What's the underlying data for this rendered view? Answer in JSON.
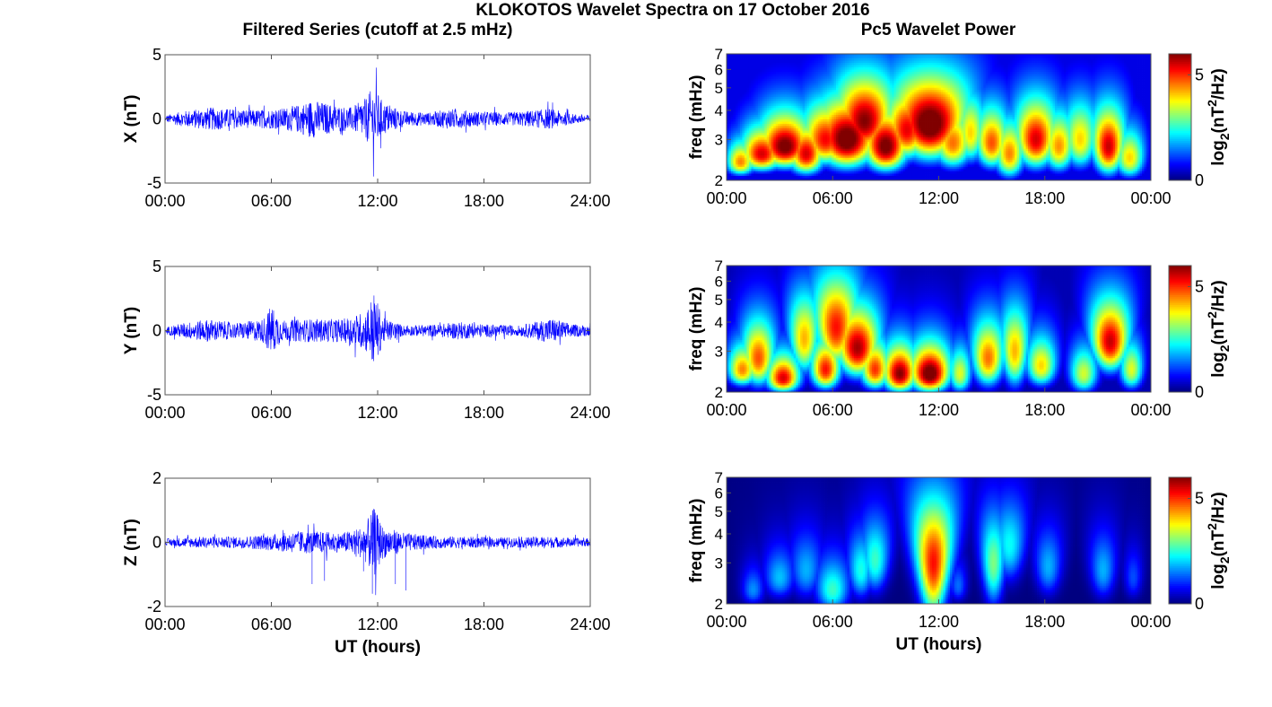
{
  "figure": {
    "title": "KLOKOTOS Wavelet Spectra on 17 October 2016",
    "left_title": "Filtered Series (cutoff at 2.5 mHz)",
    "right_title": "Pc5 Wavelet Power",
    "x_label": "UT (hours)"
  },
  "chart_data": [
    {
      "type": "line",
      "component": "X",
      "ylabel": "X (nT)",
      "ylim": [
        -5,
        5
      ],
      "yticks": [
        "-5",
        "0",
        "5"
      ],
      "xlim": [
        0,
        24
      ],
      "xticks": [
        "00:00",
        "06:00",
        "12:00",
        "18:00",
        "24:00"
      ],
      "series": [
        {
          "color": "#0000ff",
          "envelope": [
            {
              "x": 0.0,
              "amp": 0.0
            },
            {
              "x": 0.1,
              "amp": 0.3
            },
            {
              "x": 1.0,
              "amp": 0.6
            },
            {
              "x": 2.5,
              "amp": 0.9
            },
            {
              "x": 3.5,
              "amp": 0.8
            },
            {
              "x": 5.0,
              "amp": 0.7
            },
            {
              "x": 6.5,
              "amp": 0.8
            },
            {
              "x": 7.5,
              "amp": 1.1
            },
            {
              "x": 8.3,
              "amp": 1.5
            },
            {
              "x": 9.5,
              "amp": 1.1
            },
            {
              "x": 10.5,
              "amp": 0.9
            },
            {
              "x": 11.3,
              "amp": 1.6
            },
            {
              "x": 11.8,
              "amp": 2.6
            },
            {
              "x": 12.3,
              "amp": 1.3
            },
            {
              "x": 13.5,
              "amp": 0.6
            },
            {
              "x": 15.0,
              "amp": 0.5
            },
            {
              "x": 16.0,
              "amp": 0.8
            },
            {
              "x": 17.5,
              "amp": 0.6
            },
            {
              "x": 19.5,
              "amp": 0.5
            },
            {
              "x": 21.7,
              "amp": 0.8
            },
            {
              "x": 23.0,
              "amp": 0.4
            },
            {
              "x": 24.0,
              "amp": 0.3
            }
          ]
        }
      ]
    },
    {
      "type": "line",
      "component": "Y",
      "ylabel": "Y (nT)",
      "ylim": [
        -5,
        5
      ],
      "yticks": [
        "-5",
        "0",
        "5"
      ],
      "xlim": [
        0,
        24
      ],
      "xticks": [
        "00:00",
        "06:00",
        "12:00",
        "18:00",
        "24:00"
      ],
      "series": [
        {
          "color": "#0000ff",
          "envelope": [
            {
              "x": 0.0,
              "amp": 0.0
            },
            {
              "x": 0.1,
              "amp": 0.3
            },
            {
              "x": 1.0,
              "amp": 0.6
            },
            {
              "x": 2.5,
              "amp": 0.9
            },
            {
              "x": 4.0,
              "amp": 0.6
            },
            {
              "x": 5.5,
              "amp": 0.9
            },
            {
              "x": 6.0,
              "amp": 2.0
            },
            {
              "x": 6.6,
              "amp": 0.8
            },
            {
              "x": 8.0,
              "amp": 0.9
            },
            {
              "x": 10.0,
              "amp": 0.9
            },
            {
              "x": 11.3,
              "amp": 1.5
            },
            {
              "x": 11.8,
              "amp": 3.0
            },
            {
              "x": 12.3,
              "amp": 1.0
            },
            {
              "x": 13.5,
              "amp": 0.4
            },
            {
              "x": 15.5,
              "amp": 0.5
            },
            {
              "x": 16.5,
              "amp": 0.7
            },
            {
              "x": 18.0,
              "amp": 0.5
            },
            {
              "x": 20.0,
              "amp": 0.4
            },
            {
              "x": 21.8,
              "amp": 1.0
            },
            {
              "x": 23.0,
              "amp": 0.5
            },
            {
              "x": 24.0,
              "amp": 0.4
            }
          ]
        }
      ]
    },
    {
      "type": "line",
      "component": "Z",
      "ylabel": "Z (nT)",
      "ylim": [
        -2,
        2
      ],
      "yticks": [
        "-2",
        "0",
        "2"
      ],
      "xlim": [
        0,
        24
      ],
      "xticks": [
        "00:00",
        "06:00",
        "12:00",
        "18:00",
        "24:00"
      ],
      "xlabel": "UT (hours)",
      "series": [
        {
          "color": "#0000ff",
          "envelope": [
            {
              "x": 0.0,
              "amp": 0.0
            },
            {
              "x": 0.1,
              "amp": 0.12
            },
            {
              "x": 2.0,
              "amp": 0.18
            },
            {
              "x": 4.0,
              "amp": 0.18
            },
            {
              "x": 6.0,
              "amp": 0.25
            },
            {
              "x": 7.5,
              "amp": 0.35
            },
            {
              "x": 8.5,
              "amp": 0.35
            },
            {
              "x": 10.0,
              "amp": 0.3
            },
            {
              "x": 11.2,
              "amp": 0.5
            },
            {
              "x": 11.8,
              "amp": 1.1
            },
            {
              "x": 12.3,
              "amp": 0.5
            },
            {
              "x": 13.5,
              "amp": 0.3
            },
            {
              "x": 15.0,
              "amp": 0.2
            },
            {
              "x": 17.0,
              "amp": 0.18
            },
            {
              "x": 19.0,
              "amp": 0.15
            },
            {
              "x": 21.5,
              "amp": 0.18
            },
            {
              "x": 24.0,
              "amp": 0.12
            }
          ],
          "spikes": [
            {
              "x": 8.3,
              "y": -1.3
            },
            {
              "x": 9.0,
              "y": -1.2
            },
            {
              "x": 11.2,
              "y": -0.9
            },
            {
              "x": 11.7,
              "y": -1.6
            },
            {
              "x": 13.0,
              "y": -1.3
            },
            {
              "x": 13.6,
              "y": -1.5
            }
          ]
        }
      ]
    },
    {
      "type": "heatmap",
      "component": "X",
      "ylabel": "freq (mHz)",
      "ylim": [
        2,
        7
      ],
      "yscale": "log",
      "yticks": [
        "2",
        "3",
        "4",
        "5",
        "6",
        "7"
      ],
      "xlim": [
        0,
        24
      ],
      "xticks": [
        "00:00",
        "06:00",
        "12:00",
        "18:00",
        "00:00"
      ],
      "colorbar": {
        "label": "log2(nT^2/Hz)",
        "ticks": [
          "0",
          "5"
        ],
        "range": [
          0,
          6
        ],
        "colormap": "jet"
      },
      "background_level": 0.6,
      "blobs": [
        {
          "t": 0.8,
          "f": 2.4,
          "wt": 0.5,
          "wf": 0.12,
          "p": 4.5
        },
        {
          "t": 2.0,
          "f": 2.6,
          "wt": 0.7,
          "wf": 0.15,
          "p": 5.5
        },
        {
          "t": 3.3,
          "f": 2.8,
          "wt": 0.8,
          "wf": 0.2,
          "p": 6.2
        },
        {
          "t": 4.5,
          "f": 2.6,
          "wt": 0.6,
          "wf": 0.2,
          "p": 5.5
        },
        {
          "t": 5.6,
          "f": 3.0,
          "wt": 0.7,
          "wf": 0.25,
          "p": 5.3
        },
        {
          "t": 6.8,
          "f": 3.0,
          "wt": 0.9,
          "wf": 0.3,
          "p": 6.4
        },
        {
          "t": 7.8,
          "f": 3.6,
          "wt": 0.7,
          "wf": 0.35,
          "p": 6.0
        },
        {
          "t": 9.0,
          "f": 2.8,
          "wt": 0.7,
          "wf": 0.25,
          "p": 6.2
        },
        {
          "t": 10.2,
          "f": 3.3,
          "wt": 0.6,
          "wf": 0.3,
          "p": 5.4
        },
        {
          "t": 11.5,
          "f": 3.5,
          "wt": 0.9,
          "wf": 0.4,
          "p": 6.5
        },
        {
          "t": 12.8,
          "f": 2.9,
          "wt": 0.6,
          "wf": 0.25,
          "p": 4.6
        },
        {
          "t": 13.8,
          "f": 3.2,
          "wt": 0.4,
          "wf": 0.3,
          "p": 4.0
        },
        {
          "t": 15.0,
          "f": 2.9,
          "wt": 0.5,
          "wf": 0.25,
          "p": 4.8
        },
        {
          "t": 16.0,
          "f": 2.6,
          "wt": 0.5,
          "wf": 0.25,
          "p": 4.5
        },
        {
          "t": 17.5,
          "f": 3.0,
          "wt": 0.6,
          "wf": 0.3,
          "p": 5.5
        },
        {
          "t": 18.8,
          "f": 2.8,
          "wt": 0.5,
          "wf": 0.25,
          "p": 4.4
        },
        {
          "t": 20.0,
          "f": 3.0,
          "wt": 0.5,
          "wf": 0.3,
          "p": 4.0
        },
        {
          "t": 21.6,
          "f": 2.8,
          "wt": 0.5,
          "wf": 0.3,
          "p": 5.6
        },
        {
          "t": 22.8,
          "f": 2.5,
          "wt": 0.5,
          "wf": 0.2,
          "p": 4.0
        }
      ]
    },
    {
      "type": "heatmap",
      "component": "Y",
      "ylabel": "freq (mHz)",
      "ylim": [
        2,
        7
      ],
      "yscale": "log",
      "yticks": [
        "2",
        "3",
        "4",
        "5",
        "6",
        "7"
      ],
      "xlim": [
        0,
        24
      ],
      "xticks": [
        "00:00",
        "06:00",
        "12:00",
        "18:00",
        "00:00"
      ],
      "colorbar": {
        "label": "log2(nT^2/Hz)",
        "ticks": [
          "0",
          "5"
        ],
        "range": [
          0,
          6
        ],
        "colormap": "jet"
      },
      "background_level": 0.3,
      "blobs": [
        {
          "t": 0.9,
          "f": 2.5,
          "wt": 0.5,
          "wf": 0.15,
          "p": 4.5
        },
        {
          "t": 1.8,
          "f": 2.8,
          "wt": 0.5,
          "wf": 0.3,
          "p": 4.8
        },
        {
          "t": 3.2,
          "f": 2.3,
          "wt": 0.6,
          "wf": 0.15,
          "p": 5.5
        },
        {
          "t": 4.4,
          "f": 3.4,
          "wt": 0.4,
          "wf": 0.4,
          "p": 4.2
        },
        {
          "t": 5.6,
          "f": 2.5,
          "wt": 0.5,
          "wf": 0.2,
          "p": 5.2
        },
        {
          "t": 6.2,
          "f": 3.8,
          "wt": 0.5,
          "wf": 0.5,
          "p": 5.2
        },
        {
          "t": 7.4,
          "f": 3.1,
          "wt": 0.6,
          "wf": 0.3,
          "p": 5.8
        },
        {
          "t": 8.4,
          "f": 2.5,
          "wt": 0.5,
          "wf": 0.2,
          "p": 5.0
        },
        {
          "t": 9.8,
          "f": 2.4,
          "wt": 0.6,
          "wf": 0.2,
          "p": 6.0
        },
        {
          "t": 11.5,
          "f": 2.4,
          "wt": 0.7,
          "wf": 0.2,
          "p": 6.4
        },
        {
          "t": 13.2,
          "f": 2.4,
          "wt": 0.4,
          "wf": 0.2,
          "p": 3.6
        },
        {
          "t": 14.8,
          "f": 2.8,
          "wt": 0.5,
          "wf": 0.3,
          "p": 4.6
        },
        {
          "t": 16.3,
          "f": 3.0,
          "wt": 0.4,
          "wf": 0.4,
          "p": 4.2
        },
        {
          "t": 17.8,
          "f": 2.6,
          "wt": 0.5,
          "wf": 0.2,
          "p": 4.0
        },
        {
          "t": 20.2,
          "f": 2.4,
          "wt": 0.5,
          "wf": 0.2,
          "p": 3.5
        },
        {
          "t": 21.7,
          "f": 3.3,
          "wt": 0.5,
          "wf": 0.3,
          "p": 5.6
        },
        {
          "t": 22.9,
          "f": 2.5,
          "wt": 0.4,
          "wf": 0.2,
          "p": 3.6
        }
      ]
    },
    {
      "type": "heatmap",
      "component": "Z",
      "ylabel": "freq (mHz)",
      "ylim": [
        2,
        7
      ],
      "yscale": "log",
      "yticks": [
        "2",
        "3",
        "4",
        "5",
        "6",
        "7"
      ],
      "xlim": [
        0,
        24
      ],
      "xticks": [
        "00:00",
        "06:00",
        "12:00",
        "18:00",
        "00:00"
      ],
      "xlabel": "UT (hours)",
      "colorbar": {
        "label": "log2(nT^2/Hz)",
        "ticks": [
          "0",
          "5"
        ],
        "range": [
          0,
          6
        ],
        "colormap": "jet"
      },
      "background_level": 0.0,
      "blobs": [
        {
          "t": 1.5,
          "f": 2.3,
          "wt": 0.4,
          "wf": 0.15,
          "p": 1.6
        },
        {
          "t": 3.0,
          "f": 2.6,
          "wt": 0.5,
          "wf": 0.2,
          "p": 1.9
        },
        {
          "t": 4.5,
          "f": 2.8,
          "wt": 0.5,
          "wf": 0.3,
          "p": 1.8
        },
        {
          "t": 6.0,
          "f": 2.3,
          "wt": 0.6,
          "wf": 0.25,
          "p": 2.6
        },
        {
          "t": 7.6,
          "f": 2.8,
          "wt": 0.4,
          "wf": 0.3,
          "p": 2.4
        },
        {
          "t": 8.4,
          "f": 3.1,
          "wt": 0.4,
          "wf": 0.35,
          "p": 2.6
        },
        {
          "t": 11.7,
          "f": 3.0,
          "wt": 0.5,
          "wf": 0.7,
          "p": 5.2
        },
        {
          "t": 13.1,
          "f": 2.4,
          "wt": 0.3,
          "wf": 0.15,
          "p": 1.4
        },
        {
          "t": 15.1,
          "f": 3.0,
          "wt": 0.35,
          "wf": 0.5,
          "p": 3.0
        },
        {
          "t": 16.0,
          "f": 3.6,
          "wt": 0.4,
          "wf": 0.4,
          "p": 2.3
        },
        {
          "t": 18.2,
          "f": 2.9,
          "wt": 0.4,
          "wf": 0.3,
          "p": 1.8
        },
        {
          "t": 21.3,
          "f": 2.8,
          "wt": 0.4,
          "wf": 0.3,
          "p": 1.8
        },
        {
          "t": 23.0,
          "f": 2.6,
          "wt": 0.3,
          "wf": 0.2,
          "p": 1.2
        }
      ]
    }
  ]
}
